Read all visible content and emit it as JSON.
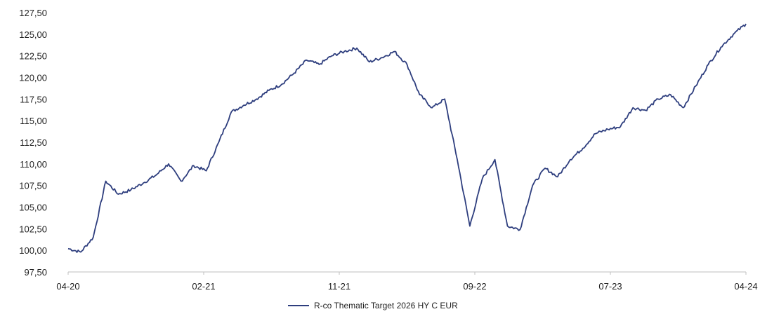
{
  "chart_data": {
    "type": "line",
    "title": "",
    "xlabel": "",
    "ylabel": "",
    "ylim": [
      97.5,
      127.5
    ],
    "yticks": [
      "97,50",
      "100,00",
      "102,50",
      "105,00",
      "107,50",
      "110,00",
      "112,50",
      "115,00",
      "117,50",
      "120,00",
      "122,50",
      "125,00",
      "127,50"
    ],
    "xticks": [
      "04-20",
      "02-21",
      "11-21",
      "09-22",
      "07-23",
      "04-24"
    ],
    "grid": false,
    "legend": "bottom-center",
    "series": [
      {
        "name": "R-co Thematic Target 2026 HY C EUR",
        "color": "#2e3e7e",
        "x": [
          "2020-04",
          "2020-05",
          "2020-05",
          "2020-05",
          "2020-06",
          "2020-06",
          "2020-07",
          "2020-07",
          "2020-08",
          "2020-09",
          "2020-10",
          "2020-11",
          "2020-11",
          "2020-12",
          "2021-01",
          "2021-02",
          "2021-03",
          "2021-04",
          "2021-05",
          "2021-06",
          "2021-07",
          "2021-08",
          "2021-09",
          "2021-10",
          "2021-11",
          "2021-11",
          "2021-12",
          "2022-01",
          "2022-02",
          "2022-03",
          "2022-04",
          "2022-05",
          "2022-06",
          "2022-07",
          "2022-08",
          "2022-09",
          "2022-10",
          "2022-11",
          "2022-12",
          "2023-01",
          "2023-02",
          "2023-03",
          "2023-04",
          "2023-05",
          "2023-06",
          "2023-07",
          "2023-08",
          "2023-09",
          "2023-10",
          "2023-11",
          "2023-12",
          "2024-01",
          "2024-02",
          "2024-03",
          "2024-04"
        ],
        "values": [
          100.2,
          99.8,
          101.5,
          108.0,
          106.5,
          107.0,
          107.8,
          108.7,
          110.0,
          108.0,
          109.8,
          109.2,
          112.5,
          116.0,
          116.8,
          117.5,
          118.5,
          119.2,
          120.5,
          122.0,
          121.5,
          122.5,
          123.0,
          123.4,
          121.8,
          122.3,
          123.0,
          121.5,
          118.0,
          116.5,
          117.5,
          110.5,
          102.8,
          108.3,
          110.5,
          102.8,
          102.4,
          107.5,
          109.5,
          108.5,
          110.5,
          111.8,
          113.5,
          114.0,
          114.3,
          116.5,
          116.2,
          117.5,
          118.0,
          116.5,
          119.0,
          121.5,
          123.5,
          125.0,
          126.2
        ]
      }
    ]
  }
}
